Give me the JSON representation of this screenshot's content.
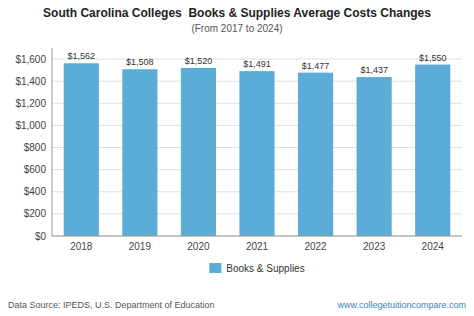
{
  "chart_data": {
    "type": "bar",
    "title": "South Carolina Colleges  Books & Supplies Average Costs Changes",
    "subtitle": "(From 2017 to 2024)",
    "categories": [
      "2018",
      "2019",
      "2020",
      "2021",
      "2022",
      "2023",
      "2024"
    ],
    "series": [
      {
        "name": "Books & Supplies",
        "color": "#5BACD6",
        "values": [
          1562,
          1508,
          1520,
          1491,
          1477,
          1437,
          1550
        ],
        "value_labels": [
          "$1,562",
          "$1,508",
          "$1,520",
          "$1,491",
          "$1,477",
          "$1,437",
          "$1,550"
        ]
      }
    ],
    "ylim": [
      0,
      1700
    ],
    "yticks": [
      {
        "value": 0,
        "label": "$0"
      },
      {
        "value": 200,
        "label": "$200"
      },
      {
        "value": 400,
        "label": "$400"
      },
      {
        "value": 600,
        "label": "$600"
      },
      {
        "value": 800,
        "label": "$800"
      },
      {
        "value": 1000,
        "label": "$1,000"
      },
      {
        "value": 1200,
        "label": "$1,200"
      },
      {
        "value": 1400,
        "label": "$1,400"
      },
      {
        "value": 1600,
        "label": "$1,600"
      }
    ],
    "grid": true,
    "data_labels": true,
    "legend": "bottom",
    "annotations": [
      "Data Source: IPEDS, U.S. Department of Education",
      "www.collegetuitioncompare.com"
    ]
  }
}
